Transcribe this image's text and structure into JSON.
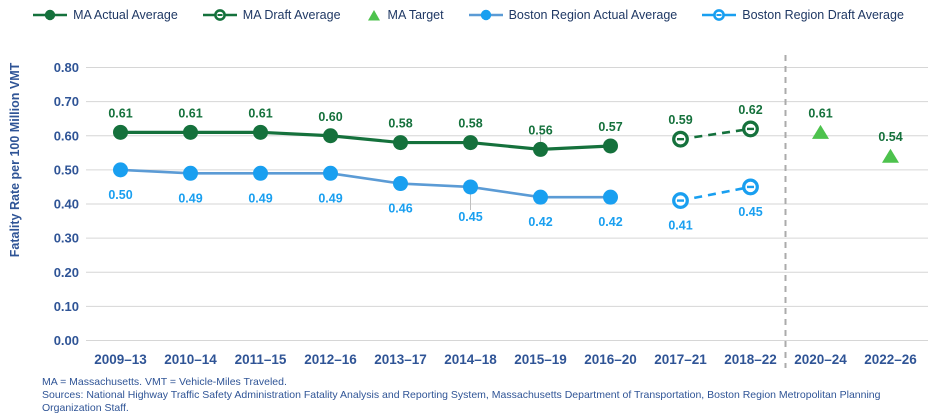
{
  "chart_data": {
    "type": "line",
    "title": "",
    "ylabel": "Fatality Rate per 100 Million VMT",
    "xlabel": "",
    "ylim": [
      0,
      0.8
    ],
    "ytick_step": 0.1,
    "grid": true,
    "legend_position": "top-center",
    "grid_color": "#D6D6D6",
    "axis_text_color": "#2F5496",
    "legend_text_color": "#1F3864",
    "separator_color": "#ABABAB",
    "categories": [
      "2009–13",
      "2010–14",
      "2011–15",
      "2012–16",
      "2013–17",
      "2014–18",
      "2015–19",
      "2016–20",
      "2017–21",
      "2018–22",
      "2020–24",
      "2022–26"
    ],
    "separator_after_category": "2018–22",
    "series": [
      {
        "name": "MA Actual Average",
        "marker": "circle-filled",
        "line": "solid",
        "color": "#15713C",
        "line_color": "#15713C",
        "label_color": "#15713C",
        "label_pos": "above",
        "start": 0,
        "values": [
          0.61,
          0.61,
          0.61,
          0.6,
          0.58,
          0.58,
          0.56,
          0.57
        ],
        "leaders": [
          6
        ]
      },
      {
        "name": "MA Draft Average",
        "marker": "circle-open",
        "line": "dashed",
        "color": "#15713C",
        "label_color": "#15713C",
        "label_pos": "above",
        "start": 8,
        "values": [
          0.59,
          0.62
        ]
      },
      {
        "name": "MA Target",
        "marker": "triangle",
        "line": "none",
        "color": "#4DC24D",
        "label_color": "#15713C",
        "label_pos": "above",
        "start": 10,
        "values": [
          0.61,
          0.54
        ]
      },
      {
        "name": "Boston Region Actual Average",
        "marker": "circle-filled",
        "line": "solid",
        "color": "#199FF0",
        "line_color": "#5B9BD5",
        "label_color": "#199FF0",
        "label_pos": "below",
        "start": 0,
        "values": [
          0.5,
          0.49,
          0.49,
          0.49,
          0.46,
          0.45,
          0.42,
          0.42
        ],
        "leaders": [
          5
        ],
        "label_dy_extra": {
          "5": 5
        }
      },
      {
        "name": "Boston Region Draft Average",
        "marker": "circle-open",
        "line": "dashed",
        "color": "#199FF0",
        "label_color": "#199FF0",
        "label_pos": "below",
        "start": 8,
        "values": [
          0.41,
          0.45
        ]
      }
    ]
  },
  "footnotes": {
    "line1": "MA = Massachusetts. VMT = Vehicle-Miles Traveled.",
    "line2": "Sources: National Highway Traffic Safety Administration Fatality Analysis and Reporting System, Massachusetts Department of Transportation, Boston Region Metropolitan Planning Organization Staff."
  }
}
